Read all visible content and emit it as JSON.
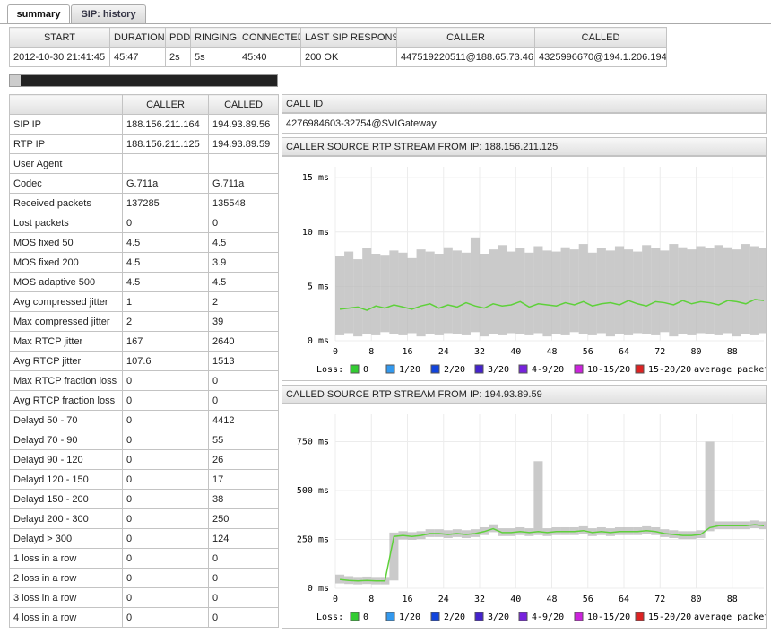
{
  "tabs": [
    "summary",
    "SIP: history"
  ],
  "call_table": {
    "headers": [
      "START",
      "DURATION",
      "PDD",
      "RINGING",
      "CONNECTED",
      "LAST SIP RESPONSE",
      "CALLER",
      "CALLED"
    ],
    "rows": [
      [
        "2012-10-30 21:41:45",
        "45:47",
        "2s",
        "5s",
        "45:40",
        "200 OK",
        "447519220511@188.65.73.46",
        "4325996670@194.1.206.194"
      ]
    ]
  },
  "stats_table": {
    "headers": [
      null,
      "CALLER",
      "CALLED"
    ],
    "rows": [
      [
        "SIP IP",
        "188.156.211.164",
        "194.93.89.56"
      ],
      [
        "RTP IP",
        "188.156.211.125",
        "194.93.89.59"
      ],
      [
        "User Agent",
        null,
        null
      ],
      [
        "Codec",
        "G.711a",
        "G.711a"
      ],
      [
        "Received packets",
        137285,
        135548
      ],
      [
        "Lost packets",
        0,
        0
      ],
      [
        "MOS fixed 50",
        4.5,
        4.5
      ],
      [
        "MOS fixed 200",
        4.5,
        3.9
      ],
      [
        "MOS adaptive 500",
        4.5,
        4.5
      ],
      [
        "Avg compressed jitter",
        1,
        2
      ],
      [
        "Max compressed jitter",
        2,
        39
      ],
      [
        "Max RTCP jitter",
        167,
        2640
      ],
      [
        "Avg RTCP jitter",
        107.6,
        1513
      ],
      [
        "Max RTCP fraction loss",
        0,
        0
      ],
      [
        "Avg RTCP fraction loss",
        0,
        0
      ],
      [
        "Delayd 50 - 70",
        0,
        4412
      ],
      [
        "Delayd 70 - 90",
        0,
        55
      ],
      [
        "Delayd 90 - 120",
        0,
        26
      ],
      [
        "Delayd 120 - 150",
        0,
        17
      ],
      [
        "Delayd 150 - 200",
        0,
        38
      ],
      [
        "Delayd 200 - 300",
        0,
        250
      ],
      [
        "Delayd > 300",
        0,
        124
      ],
      [
        "1 loss in a row",
        0,
        0
      ],
      [
        "2 loss in a row",
        0,
        0
      ],
      [
        "3 loss in a row",
        0,
        0
      ],
      [
        "4 loss in a row",
        0,
        0
      ]
    ]
  },
  "call_id": {
    "header": "CALL ID",
    "value": "4276984603-32754@SVIGateway"
  },
  "charts": [
    {
      "type": "line",
      "title": "CALLER SOURCE RTP STREAM FROM IP: 188.156.211.125",
      "x": [
        0,
        2,
        4,
        6,
        8,
        10,
        12,
        14,
        16,
        18,
        20,
        22,
        24,
        26,
        28,
        30,
        32,
        34,
        36,
        38,
        40,
        42,
        44,
        46,
        48,
        50,
        52,
        54,
        56,
        58,
        60,
        62,
        64,
        66,
        68,
        70,
        72,
        74,
        76,
        78,
        80,
        82,
        84,
        86,
        88,
        90,
        92,
        94
      ],
      "xlim": [
        0,
        95
      ],
      "xticks": [
        0,
        8,
        16,
        24,
        32,
        40,
        48,
        56,
        64,
        72,
        80,
        88
      ],
      "ylim": [
        0,
        16
      ],
      "yticks": [
        {
          "value": 0,
          "label": "0 ms"
        },
        {
          "value": 5,
          "label": "5 ms"
        },
        {
          "value": 10,
          "label": "10 ms"
        },
        {
          "value": 15,
          "label": "15 ms"
        }
      ],
      "grid": true,
      "band": {
        "color": "#b8b8b8",
        "low": [
          0.5,
          0.7,
          0.4,
          0.6,
          0.5,
          0.8,
          0.6,
          0.5,
          0.7,
          0.4,
          0.6,
          0.5,
          0.7,
          0.6,
          0.5,
          0.8,
          0.4,
          0.6,
          0.5,
          0.7,
          0.6,
          0.5,
          0.7,
          0.4,
          0.6,
          0.5,
          0.8,
          0.6,
          0.5,
          0.7,
          0.4,
          0.6,
          0.5,
          0.7,
          0.6,
          0.5,
          0.8,
          0.4,
          0.6,
          0.5,
          0.7,
          0.6,
          0.5,
          0.7,
          0.4,
          0.6,
          0.5,
          0.7
        ],
        "high": [
          7.8,
          8.2,
          7.5,
          8.5,
          8.0,
          7.9,
          8.3,
          8.1,
          7.6,
          8.4,
          8.2,
          8.0,
          8.6,
          8.3,
          8.1,
          9.5,
          8.0,
          8.4,
          8.8,
          8.2,
          8.5,
          8.1,
          8.7,
          8.3,
          8.2,
          8.6,
          8.4,
          8.9,
          8.1,
          8.5,
          8.3,
          8.7,
          8.4,
          8.2,
          8.8,
          8.5,
          8.3,
          8.9,
          8.6,
          8.4,
          8.7,
          8.5,
          8.8,
          8.6,
          8.4,
          8.9,
          8.7,
          8.5
        ]
      },
      "series": [
        {
          "color": "#5ed13a",
          "values": [
            2.9,
            3.0,
            3.1,
            2.8,
            3.2,
            3.0,
            3.3,
            3.1,
            2.9,
            3.2,
            3.4,
            3.0,
            3.3,
            3.1,
            3.5,
            3.2,
            3.0,
            3.4,
            3.2,
            3.3,
            3.6,
            3.1,
            3.4,
            3.3,
            3.2,
            3.5,
            3.3,
            3.6,
            3.2,
            3.4,
            3.5,
            3.3,
            3.7,
            3.4,
            3.2,
            3.6,
            3.5,
            3.3,
            3.7,
            3.4,
            3.6,
            3.5,
            3.3,
            3.7,
            3.6,
            3.4,
            3.8,
            3.7
          ]
        }
      ],
      "legend_label": "Loss:",
      "legend": [
        {
          "label": "0",
          "color": "#33cc33"
        },
        {
          "label": "1/20",
          "color": "#3399ee"
        },
        {
          "label": "2/20",
          "color": "#1144dd"
        },
        {
          "label": "3/20",
          "color": "#4422cc"
        },
        {
          "label": "4-9/20",
          "color": "#7722dd"
        },
        {
          "label": "10-15/20",
          "color": "#cc22dd"
        },
        {
          "label": "15-20/20",
          "color": "#dd2222"
        }
      ],
      "legend_note": "average packet ]"
    },
    {
      "type": "line",
      "title": "CALLED SOURCE RTP STREAM FROM IP: 194.93.89.59",
      "x": [
        0,
        2,
        4,
        6,
        8,
        10,
        12,
        14,
        16,
        18,
        20,
        22,
        24,
        26,
        28,
        30,
        32,
        34,
        36,
        38,
        40,
        42,
        44,
        46,
        48,
        50,
        52,
        54,
        56,
        58,
        60,
        62,
        64,
        66,
        68,
        70,
        72,
        74,
        76,
        78,
        80,
        82,
        84,
        86,
        88,
        90,
        92,
        94
      ],
      "xlim": [
        0,
        95
      ],
      "xticks": [
        0,
        8,
        16,
        24,
        32,
        40,
        48,
        56,
        64,
        72,
        80,
        88
      ],
      "ylim": [
        0,
        890
      ],
      "yticks": [
        {
          "value": 0,
          "label": "0 ms"
        },
        {
          "value": 250,
          "label": "250 ms"
        },
        {
          "value": 500,
          "label": "500 ms"
        },
        {
          "value": 750,
          "label": "750 ms"
        }
      ],
      "grid": true,
      "band": {
        "color": "#b8b8b8",
        "low": [
          25,
          22,
          20,
          22,
          20,
          20,
          40,
          250,
          248,
          252,
          262,
          262,
          257,
          262,
          257,
          262,
          272,
          287,
          267,
          267,
          272,
          267,
          272,
          267,
          272,
          272,
          272,
          277,
          267,
          272,
          267,
          272,
          272,
          272,
          277,
          272,
          262,
          257,
          252,
          252,
          257,
          292,
          302,
          302,
          302,
          302,
          307,
          302
        ],
        "high": [
          70,
          62,
          58,
          60,
          58,
          58,
          285,
          292,
          287,
          292,
          302,
          302,
          297,
          302,
          297,
          302,
          312,
          327,
          307,
          307,
          312,
          307,
          650,
          307,
          312,
          312,
          312,
          317,
          307,
          312,
          307,
          312,
          312,
          312,
          317,
          312,
          302,
          297,
          292,
          292,
          297,
          750,
          342,
          342,
          342,
          342,
          347,
          342
        ]
      },
      "series": [
        {
          "color": "#5ed13a",
          "values": [
            45,
            40,
            38,
            40,
            38,
            38,
            265,
            270,
            265,
            270,
            280,
            280,
            275,
            280,
            275,
            280,
            290,
            305,
            285,
            285,
            290,
            285,
            290,
            285,
            290,
            290,
            290,
            295,
            285,
            290,
            285,
            290,
            290,
            290,
            295,
            290,
            280,
            275,
            270,
            270,
            275,
            310,
            320,
            320,
            320,
            320,
            325,
            320
          ]
        }
      ],
      "legend_label": "Loss:",
      "legend": [
        {
          "label": "0",
          "color": "#33cc33"
        },
        {
          "label": "1/20",
          "color": "#3399ee"
        },
        {
          "label": "2/20",
          "color": "#1144dd"
        },
        {
          "label": "3/20",
          "color": "#4422cc"
        },
        {
          "label": "4-9/20",
          "color": "#7722dd"
        },
        {
          "label": "10-15/20",
          "color": "#cc22dd"
        },
        {
          "label": "15-20/20",
          "color": "#dd2222"
        }
      ],
      "legend_note": "average packet ]"
    }
  ]
}
